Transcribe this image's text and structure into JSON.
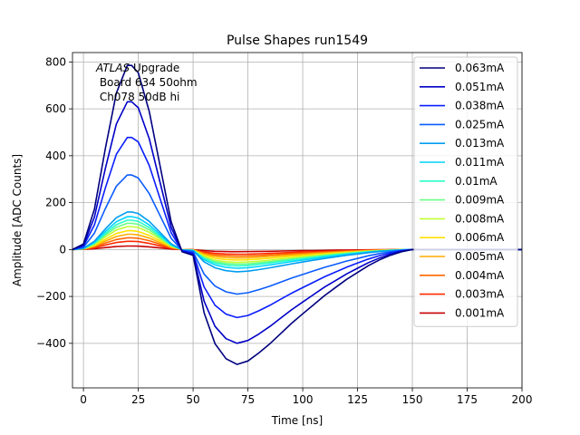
{
  "chart_data": {
    "type": "line",
    "title": "Pulse Shapes run1549",
    "xlabel": "Time [ns]",
    "ylabel": "Amplitude [ADC Counts]",
    "xlim": [
      -5,
      200
    ],
    "ylim": [
      -590,
      840
    ],
    "xticks": [
      0,
      25,
      50,
      75,
      100,
      125,
      150,
      175,
      200
    ],
    "yticks": [
      -400,
      -200,
      0,
      200,
      400,
      600,
      800
    ],
    "xtick_labels": [
      "0",
      "25",
      "50",
      "75",
      "100",
      "125",
      "150",
      "175",
      "200"
    ],
    "ytick_labels": [
      "−400",
      "−200",
      "0",
      "200",
      "400",
      "600",
      "800"
    ],
    "grid": true,
    "legend_position": "top-right",
    "annotation": {
      "italic": "ATLAS",
      "rest": " Upgrade",
      "line2": " Board 634 50ohm",
      "line3": " Ch078 50dB hi"
    },
    "x": [
      -5,
      0,
      5,
      10,
      15,
      20,
      22,
      25,
      30,
      35,
      40,
      45,
      50,
      55,
      60,
      65,
      70,
      75,
      80,
      85,
      90,
      95,
      100,
      105,
      110,
      115,
      120,
      125,
      130,
      135,
      140,
      145,
      150,
      160,
      175,
      200
    ],
    "series": [
      {
        "name": "0.063mA",
        "color": "#00007f",
        "peak": 785,
        "trough": -490
      },
      {
        "name": "0.051mA",
        "color": "#0000c8",
        "peak": 630,
        "trough": -400
      },
      {
        "name": "0.038mA",
        "color": "#0a1eff",
        "peak": 478,
        "trough": -290
      },
      {
        "name": "0.025mA",
        "color": "#0a5cff",
        "peak": 318,
        "trough": -190
      },
      {
        "name": "0.013mA",
        "color": "#009cf0",
        "peak": 160,
        "trough": -95
      },
      {
        "name": "0.011mA",
        "color": "#00d4ff",
        "peak": 140,
        "trough": -80
      },
      {
        "name": "0.01mA",
        "color": "#2affc8",
        "peak": 125,
        "trough": -70
      },
      {
        "name": "0.009mA",
        "color": "#6aff86",
        "peak": 112,
        "trough": -63
      },
      {
        "name": "0.008mA",
        "color": "#c0ff34",
        "peak": 98,
        "trough": -55
      },
      {
        "name": "0.006mA",
        "color": "#ffe100",
        "peak": 80,
        "trough": -45
      },
      {
        "name": "0.005mA",
        "color": "#ffaa00",
        "peak": 65,
        "trough": -36
      },
      {
        "name": "0.004mA",
        "color": "#ff6600",
        "peak": 50,
        "trough": -28
      },
      {
        "name": "0.003mA",
        "color": "#ff2a00",
        "peak": 35,
        "trough": -20
      },
      {
        "name": "0.001mA",
        "color": "#c80000",
        "peak": 15,
        "trough": -9
      }
    ],
    "shape": [
      0,
      0.03,
      0.22,
      0.55,
      0.85,
      1.0,
      1.0,
      0.96,
      0.75,
      0.45,
      0.15,
      -0.02,
      -0.05,
      -0.55,
      -0.82,
      -0.95,
      -1.0,
      -0.97,
      -0.9,
      -0.82,
      -0.73,
      -0.64,
      -0.56,
      -0.48,
      -0.4,
      -0.33,
      -0.26,
      -0.2,
      -0.14,
      -0.09,
      -0.05,
      -0.02,
      0.0,
      0.0,
      0.0,
      0.0
    ]
  }
}
